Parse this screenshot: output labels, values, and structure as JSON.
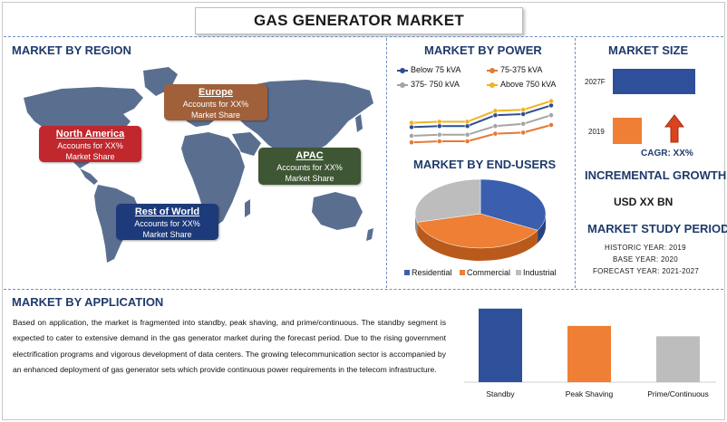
{
  "title": "GAS GENERATOR MARKET",
  "region": {
    "heading": "MARKET BY REGION",
    "boxes": [
      {
        "name": "North America",
        "line1": "Accounts for XX%",
        "line2": "Market Share",
        "color": "#c0282d"
      },
      {
        "name": "Europe",
        "line1": "Accounts for XX%",
        "line2": "Market Share",
        "color": "#a0603a"
      },
      {
        "name": "APAC",
        "line1": "Accounts for XX%",
        "line2": "Market Share",
        "color": "#3f5634"
      },
      {
        "name": "Rest of World",
        "line1": "Accounts for XX%",
        "line2": "Market Share",
        "color": "#1d3b7a"
      }
    ]
  },
  "power": {
    "heading": "MARKET BY POWER",
    "legend": [
      {
        "label": "Below 75 kVA",
        "color": "#2e4f8f"
      },
      {
        "label": "75-375 kVA",
        "color": "#e57a36"
      },
      {
        "label": "375- 750 kVA",
        "color": "#a5a5a5"
      },
      {
        "label": "Above 750 kVA",
        "color": "#f0b323"
      }
    ]
  },
  "end_users": {
    "heading": "MARKET BY END-USERS",
    "legend": [
      {
        "label": "Residential",
        "color": "#3b5fae"
      },
      {
        "label": "Commercial",
        "color": "#ee7f34"
      },
      {
        "label": "Industrial",
        "color": "#bdbdbd"
      }
    ]
  },
  "size": {
    "heading": "MARKET SIZE",
    "bar_top_label": "2027F",
    "bar_bottom_label": "2019",
    "cagr": "CAGR: XX%",
    "incremental_heading": "INCREMENTAL GROWTH",
    "incremental_value": "USD XX BN",
    "study_heading": "MARKET STUDY PERIOD",
    "historic": "HISTORIC YEAR: 2019",
    "base": "BASE YEAR: 2020",
    "forecast": "FORECAST YEAR: 2021-2027"
  },
  "application": {
    "heading": "MARKET BY APPLICATION",
    "paragraph": "Based on application, the market is fragmented into standby, peak shaving, and prime/continuous. The standby segment is expected to cater to extensive demand in the gas generator market during the forecast period. Due to the rising government electrification programs and vigorous development of data centers. The growing telecommunication sector is accompanied by an enhanced deployment of gas generator sets which provide continuous power requirements in the telecom infrastructure."
  },
  "chart_data": [
    {
      "type": "line",
      "title": "MARKET BY POWER",
      "x": [
        1,
        2,
        3,
        4,
        5,
        6
      ],
      "series": [
        {
          "name": "Below 75 kVA",
          "values": [
            18,
            19,
            19,
            29,
            30,
            38
          ]
        },
        {
          "name": "75-375 kVA",
          "values": [
            4,
            5,
            5,
            12,
            13,
            20
          ]
        },
        {
          "name": "375- 750 kVA",
          "values": [
            10,
            11,
            11,
            19,
            21,
            29
          ]
        },
        {
          "name": "Above 750 kVA",
          "values": [
            22,
            23,
            23,
            33,
            34,
            42
          ]
        }
      ],
      "ylim": [
        0,
        45
      ],
      "grid": false,
      "legend": "top"
    },
    {
      "type": "pie",
      "title": "MARKET BY END-USERS",
      "categories": [
        "Residential",
        "Commercial",
        "Industrial"
      ],
      "values": [
        33,
        38,
        29
      ],
      "legend": "bottom"
    },
    {
      "type": "bar",
      "title": "MARKET SIZE",
      "categories": [
        "2019",
        "2027F"
      ],
      "values": [
        30,
        85
      ],
      "orientation": "horizontal"
    },
    {
      "type": "bar",
      "title": "MARKET BY APPLICATION",
      "categories": [
        "Standby",
        "Peak Shaving",
        "Prime/Continuous"
      ],
      "values": [
        85,
        65,
        53
      ],
      "colors": [
        "#2e4f9a",
        "#ee7f34",
        "#bdbdbd"
      ],
      "ylim": [
        0,
        90
      ]
    }
  ]
}
